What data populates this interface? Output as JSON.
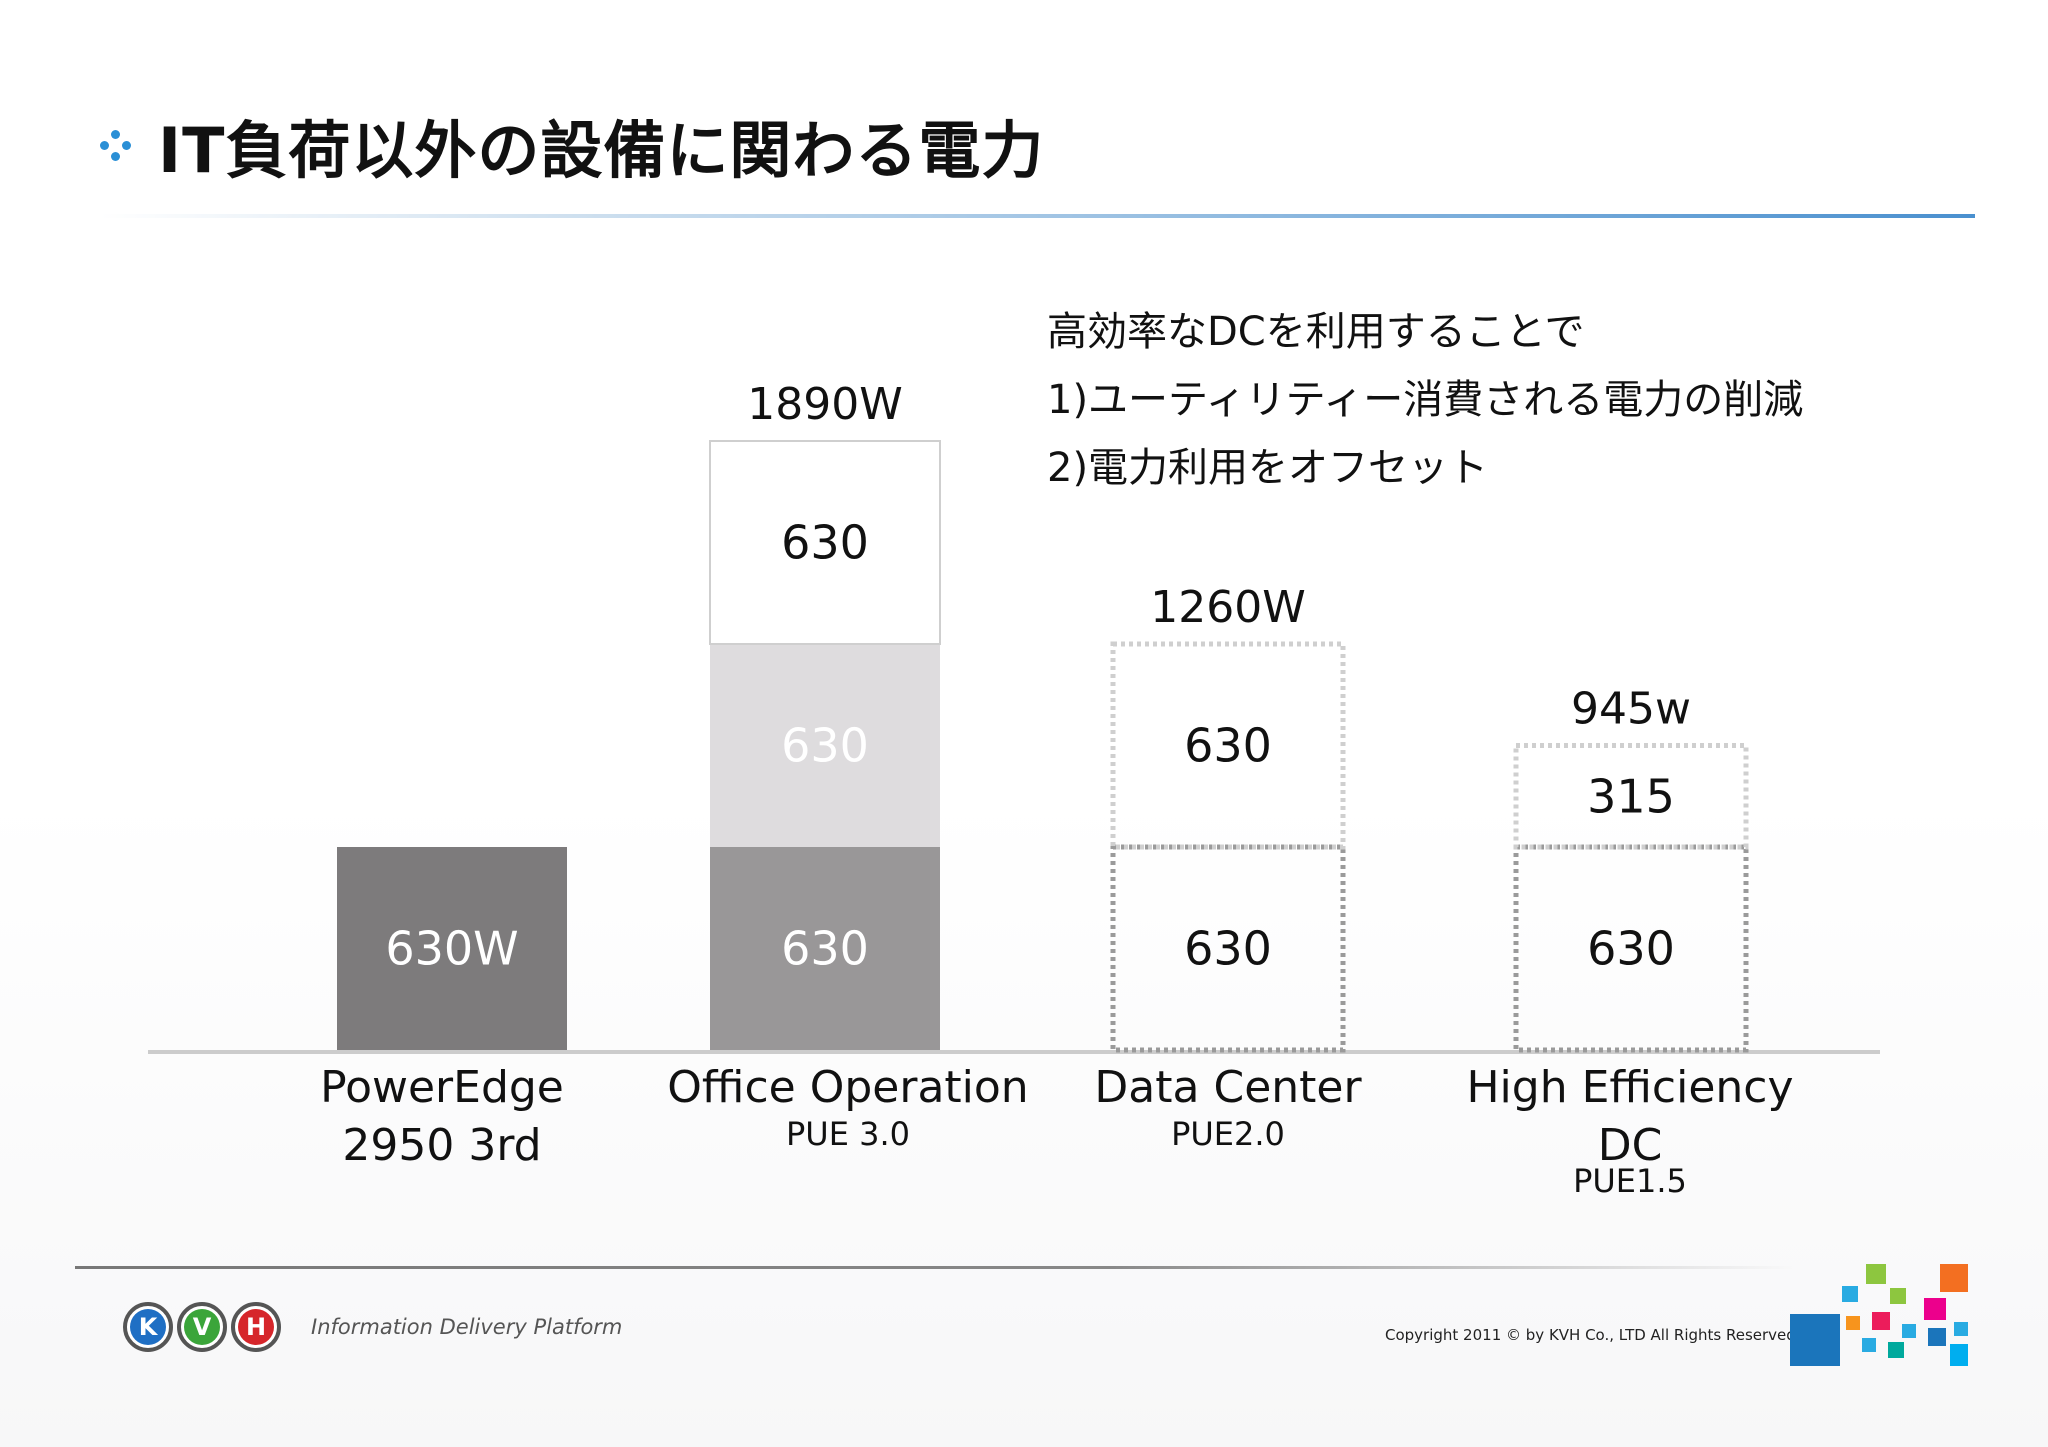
{
  "title": "IT負荷以外の設備に関わる電力",
  "note": {
    "line1": "高効率なDCを利用することで",
    "line2": "1)ユーティリティー消費される電力の削減",
    "line3": "2)電力利用をオフセット"
  },
  "chart_data": {
    "type": "bar",
    "stacked": true,
    "categories": [
      {
        "name": "PowerEdge",
        "name2": "2950   3rd",
        "sub": ""
      },
      {
        "name": "Office Operation",
        "name2": "",
        "sub": "PUE 3.0"
      },
      {
        "name": "Data Center",
        "name2": "",
        "sub": "PUE2.0"
      },
      {
        "name": "High Efficiency",
        "name2": "DC",
        "sub": "PUE1.5"
      }
    ],
    "stacks": [
      [
        {
          "value": 630,
          "label": "630W",
          "style": "dark"
        }
      ],
      [
        {
          "value": 630,
          "label": "630",
          "style": "mid"
        },
        {
          "value": 630,
          "label": "630",
          "style": "light"
        },
        {
          "value": 630,
          "label": "630",
          "style": "white"
        }
      ],
      [
        {
          "value": 630,
          "label": "630",
          "style": "dotted"
        },
        {
          "value": 630,
          "label": "630",
          "style": "dotted-light"
        }
      ],
      [
        {
          "value": 630,
          "label": "630",
          "style": "dotted"
        },
        {
          "value": 315,
          "label": "315",
          "style": "dotted-light"
        }
      ]
    ],
    "totals": [
      "",
      "1890W",
      "1260W",
      "945w"
    ],
    "ylim": [
      0,
      1890
    ],
    "colors": {
      "dark": "#7d7b7c",
      "mid": "#999798",
      "light": "#dedcde",
      "white": "#ffffff",
      "baseline": "#cccccc"
    }
  },
  "footer": {
    "logo_letters": [
      "K",
      "V",
      "H"
    ],
    "logo_colors": [
      "#1f6fc4",
      "#3ba53a",
      "#d6262b"
    ],
    "tagline": "Information Delivery Platform",
    "copyright": "Copyright 2011 © by KVH Co., LTD  All Rights Reserved"
  }
}
